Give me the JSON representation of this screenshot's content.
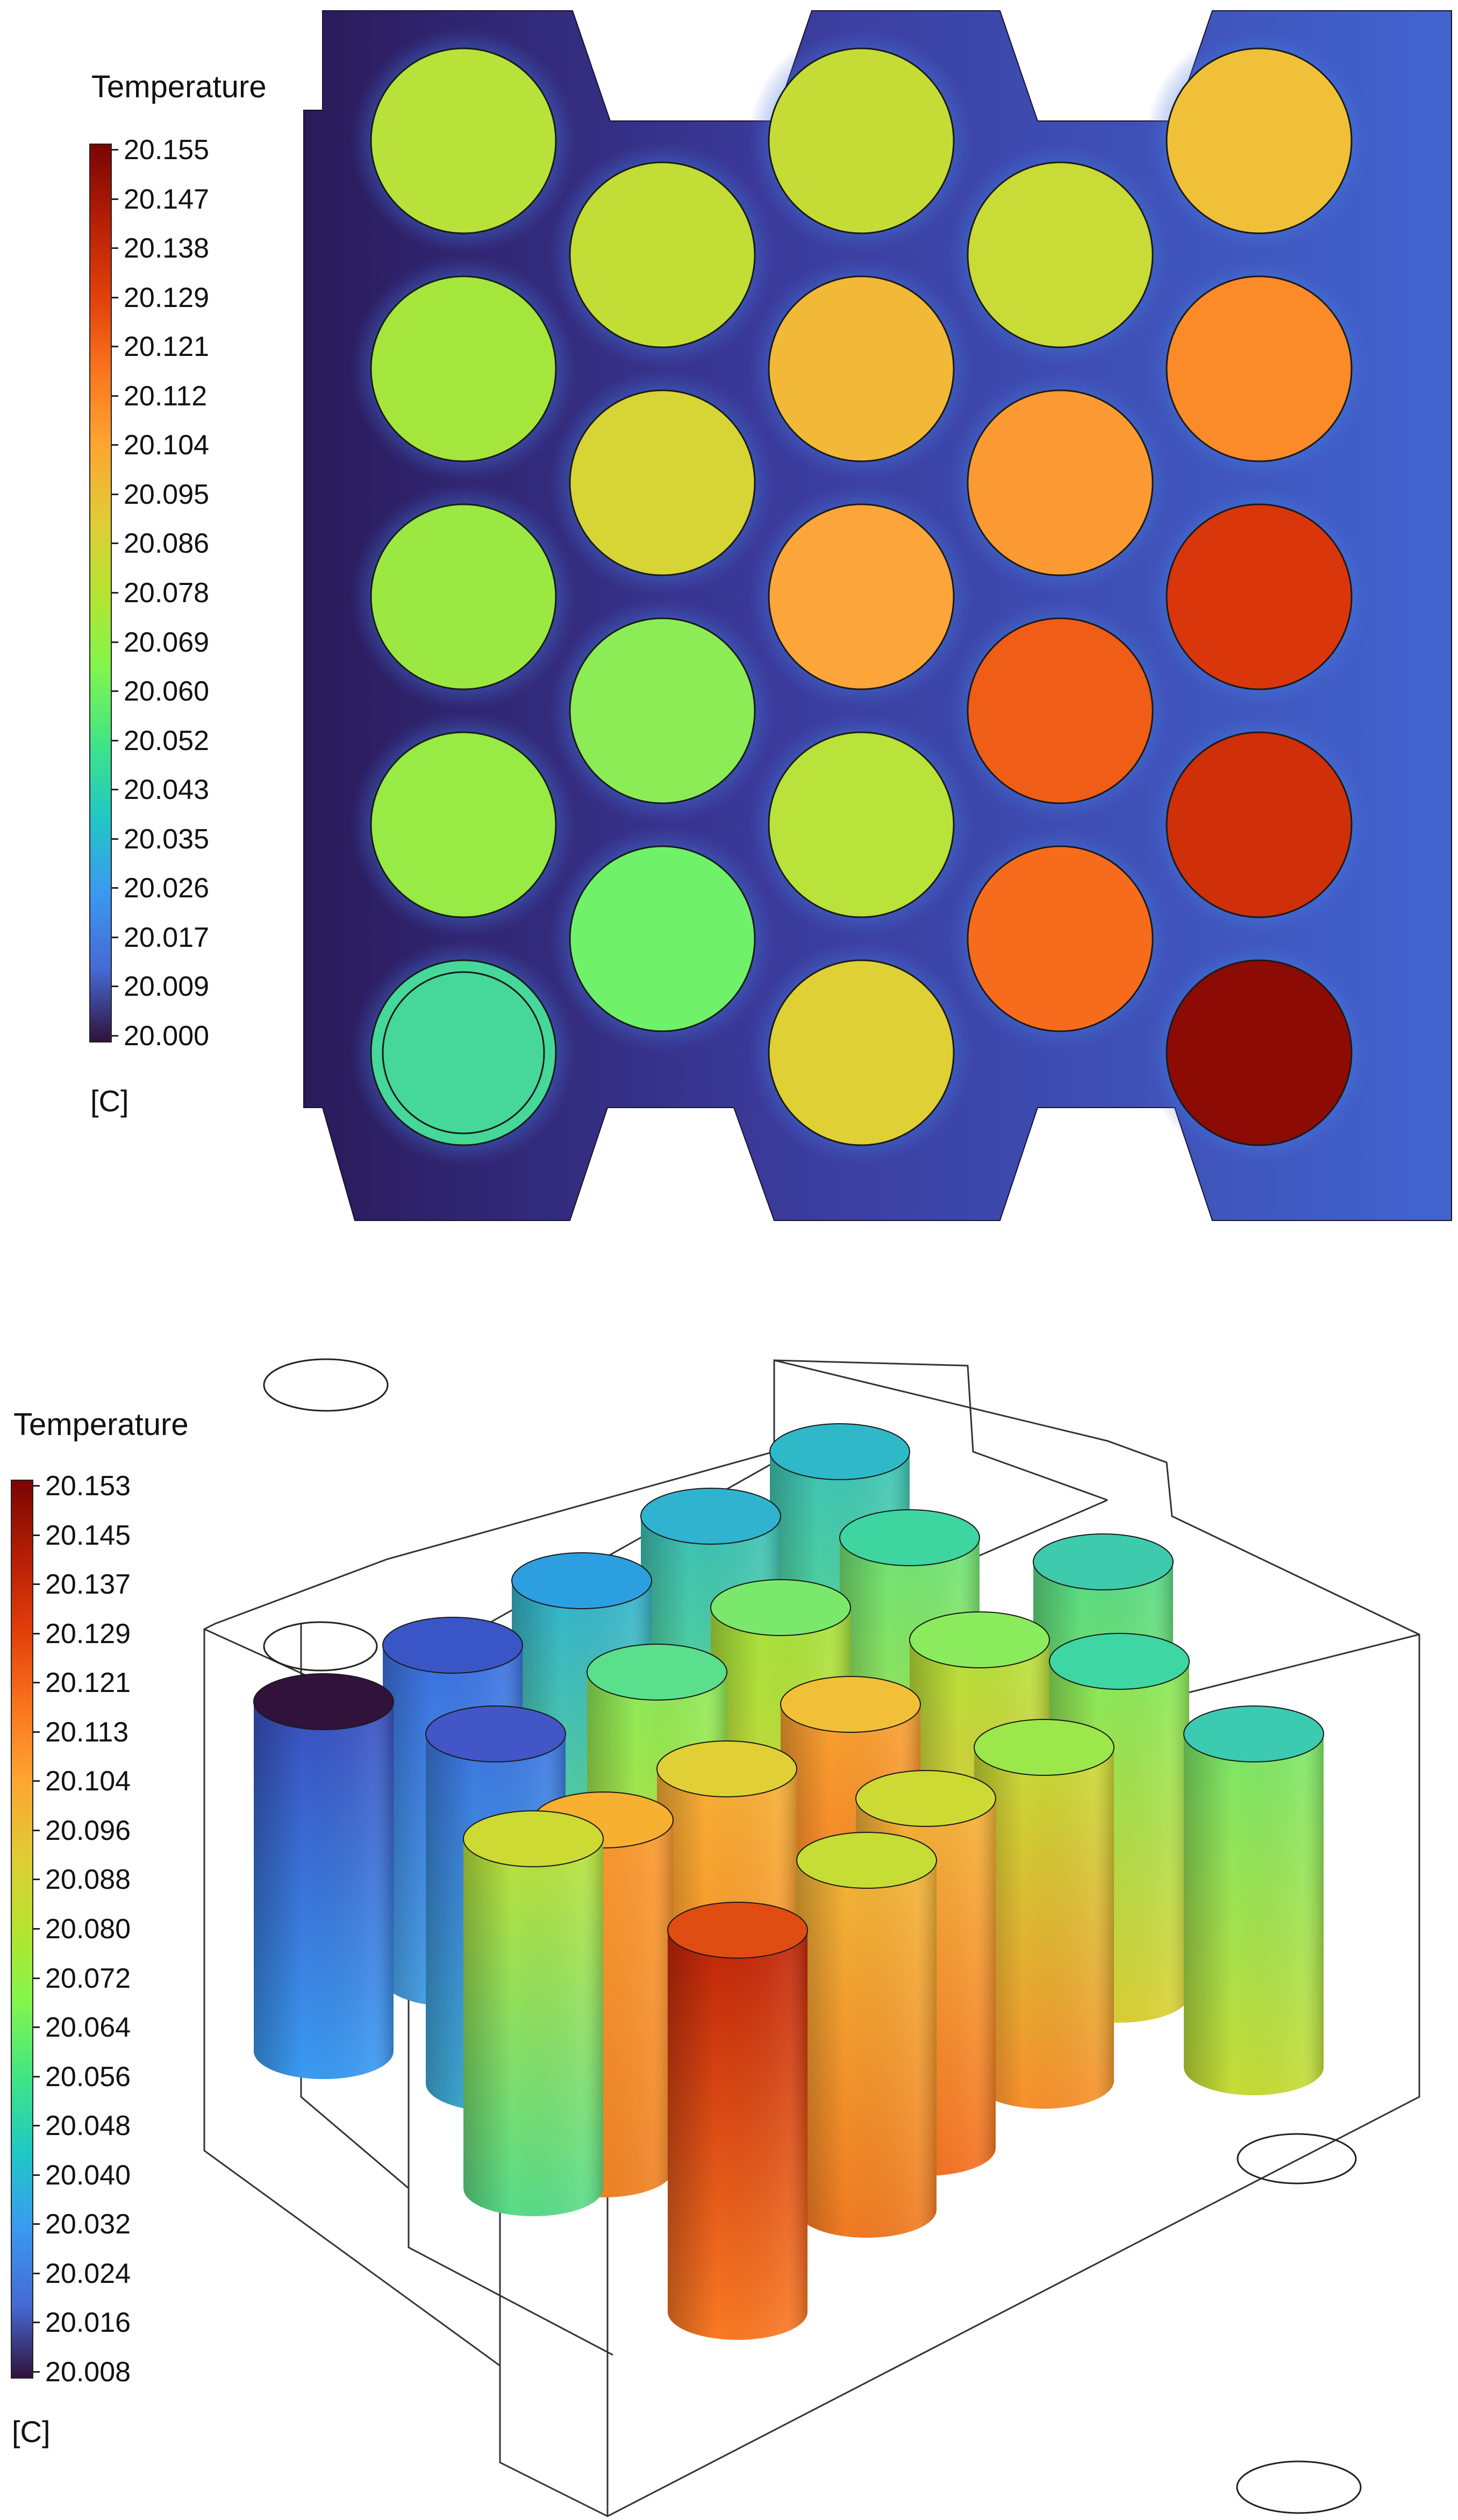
{
  "top_view": {
    "legend": {
      "title": "Temperature",
      "unit": "[C]",
      "ticks": [
        "20.155",
        "20.147",
        "20.138",
        "20.129",
        "20.121",
        "20.112",
        "20.104",
        "20.095",
        "20.086",
        "20.078",
        "20.069",
        "20.060",
        "20.052",
        "20.043",
        "20.035",
        "20.026",
        "20.017",
        "20.009",
        "20.000"
      ]
    },
    "colormap": "turbo",
    "cells": [
      {
        "col": 0,
        "row": 0,
        "color": "#b8e23a"
      },
      {
        "col": 0,
        "row": 1,
        "color": "#a5e63c"
      },
      {
        "col": 0,
        "row": 2,
        "color": "#9ce843"
      },
      {
        "col": 0,
        "row": 3,
        "color": "#98ea44"
      },
      {
        "col": 0,
        "row": 4,
        "color": "#45d89a"
      },
      {
        "col": 1,
        "row": 0,
        "color": "#c2de36"
      },
      {
        "col": 1,
        "row": 1,
        "color": "#d7d435"
      },
      {
        "col": 1,
        "row": 2,
        "color": "#8cec55"
      },
      {
        "col": 1,
        "row": 3,
        "color": "#6ff26a"
      },
      {
        "col": 2,
        "row": 0,
        "color": "#c6dc36"
      },
      {
        "col": 2,
        "row": 1,
        "color": "#f2b837"
      },
      {
        "col": 2,
        "row": 2,
        "color": "#fba53a"
      },
      {
        "col": 2,
        "row": 3,
        "color": "#b9e23a"
      },
      {
        "col": 2,
        "row": 4,
        "color": "#dfd036"
      },
      {
        "col": 3,
        "row": 0,
        "color": "#c9db37"
      },
      {
        "col": 3,
        "row": 1,
        "color": "#fb9a32"
      },
      {
        "col": 3,
        "row": 2,
        "color": "#f05d16"
      },
      {
        "col": 3,
        "row": 3,
        "color": "#f76c1c"
      },
      {
        "col": 4,
        "row": 0,
        "color": "#f0c038"
      },
      {
        "col": 4,
        "row": 1,
        "color": "#fb8a28"
      },
      {
        "col": 4,
        "row": 2,
        "color": "#d9360b"
      },
      {
        "col": 4,
        "row": 3,
        "color": "#cf2f09"
      },
      {
        "col": 4,
        "row": 4,
        "color": "#8c0b04"
      }
    ]
  },
  "iso_view": {
    "legend": {
      "title": "Temperature",
      "unit": "[C]",
      "ticks": [
        "20.153",
        "20.145",
        "20.137",
        "20.129",
        "20.121",
        "20.113",
        "20.104",
        "20.096",
        "20.088",
        "20.080",
        "20.072",
        "20.064",
        "20.056",
        "20.048",
        "20.040",
        "20.032",
        "20.024",
        "20.016",
        "20.008"
      ]
    },
    "colormap": "turbo"
  }
}
